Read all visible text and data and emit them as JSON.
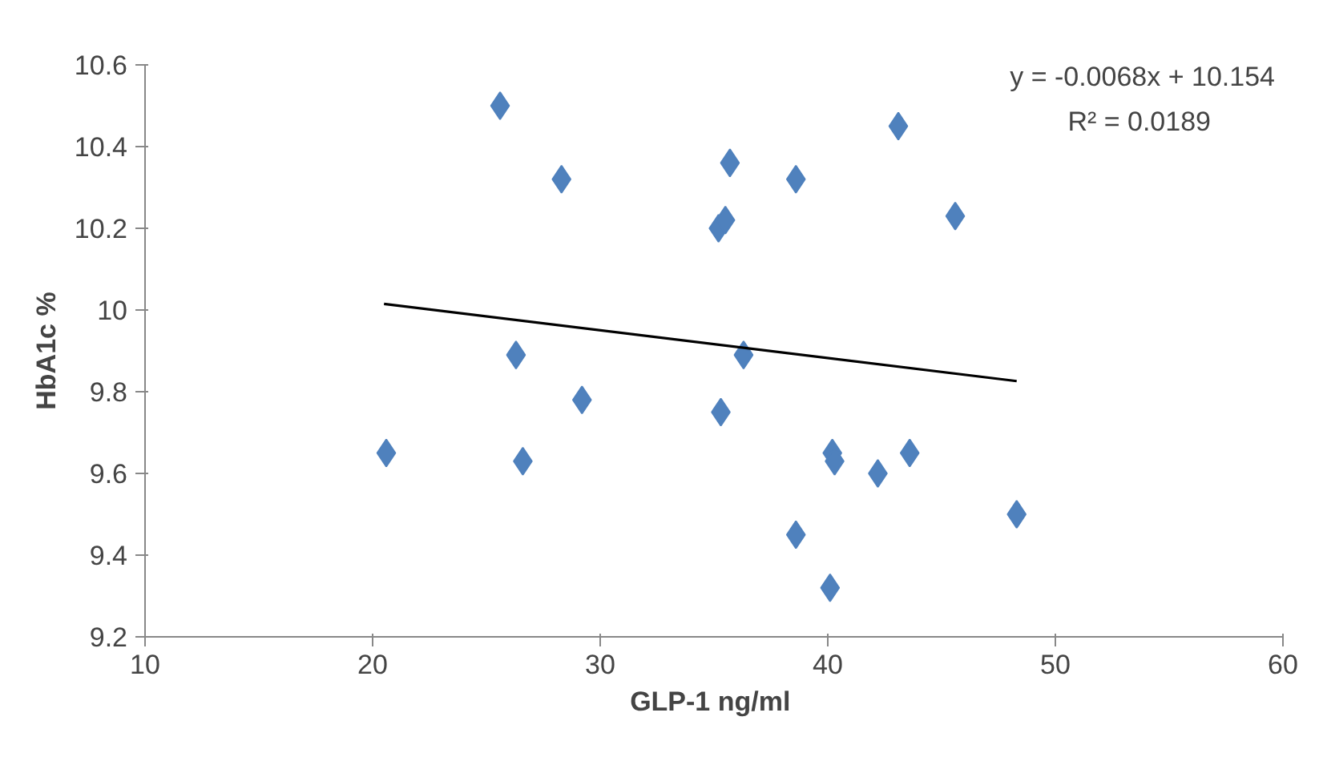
{
  "chart_data": {
    "type": "scatter",
    "xlabel": "GLP-1  ng/ml",
    "ylabel": "HbA1c %",
    "xlim": [
      10,
      60
    ],
    "xticks": [
      10,
      20,
      30,
      40,
      50,
      60
    ],
    "ylim": [
      9.2,
      10.6
    ],
    "yticks": [
      9.2,
      9.4,
      9.6,
      9.8,
      {
        "value": 10,
        "label": "10"
      },
      10.2,
      10.4,
      10.6
    ],
    "grid": false,
    "series": [
      {
        "marker": "diamond",
        "color": "#4f81bd",
        "x": [
          25.6,
          28.3,
          35.7,
          38.6,
          43.1,
          45.6,
          35.2,
          35.5,
          26.3,
          36.3,
          29.2,
          20.6,
          35.3,
          26.6,
          40.2,
          40.3,
          42.2,
          43.6,
          48.3,
          38.6,
          40.1
        ],
        "values": [
          10.5,
          10.32,
          10.36,
          10.32,
          10.45,
          10.23,
          10.2,
          10.22,
          9.89,
          9.89,
          9.78,
          9.65,
          9.75,
          9.63,
          9.65,
          9.63,
          9.6,
          9.65,
          9.5,
          9.45,
          9.32
        ]
      },
      {
        "type": "line",
        "marker": "none",
        "color": "#000000",
        "x": [
          20.5,
          48.3
        ],
        "values": [
          10.015,
          9.826
        ]
      }
    ],
    "annotations": [
      "y = -0.0068x + 10.154",
      "R² = 0.0189"
    ]
  }
}
